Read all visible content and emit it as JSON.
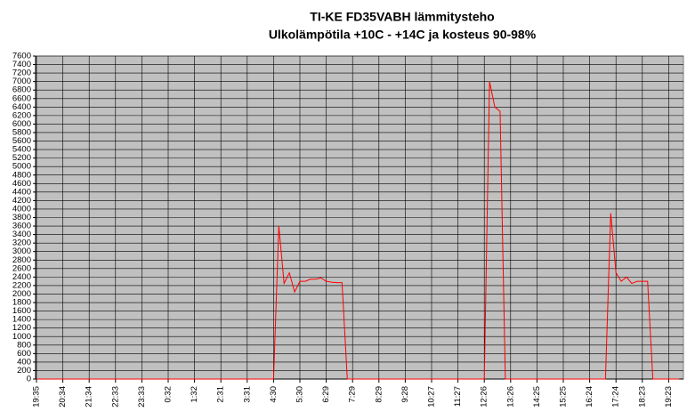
{
  "chart_data": {
    "type": "line",
    "title": "TI-KE FD35VABH lämmitysteho",
    "subtitle": "Ulkolämpötila  +10C - +14C ja kosteus 90-98%",
    "categories": [
      "19:35",
      null,
      null,
      null,
      null,
      "20:34",
      null,
      null,
      null,
      null,
      "21:34",
      null,
      null,
      null,
      null,
      "22:33",
      null,
      null,
      null,
      null,
      "23:33",
      null,
      null,
      null,
      null,
      "0:32",
      null,
      null,
      null,
      null,
      "1:32",
      null,
      null,
      null,
      null,
      "2:31",
      null,
      null,
      null,
      null,
      "3:31",
      null,
      null,
      null,
      null,
      "4:30",
      null,
      null,
      null,
      null,
      "5:30",
      null,
      null,
      null,
      null,
      "6:29",
      null,
      null,
      null,
      null,
      "7:29",
      null,
      null,
      null,
      null,
      "8:29",
      null,
      null,
      null,
      null,
      "9:28",
      null,
      null,
      null,
      null,
      "10:27",
      null,
      null,
      null,
      null,
      "11:27",
      null,
      null,
      null,
      null,
      "12:26",
      null,
      null,
      null,
      null,
      "13:26",
      null,
      null,
      null,
      null,
      "14:25",
      null,
      null,
      null,
      null,
      "15:25",
      null,
      null,
      null,
      null,
      "16:24",
      null,
      null,
      null,
      null,
      "17:24",
      null,
      null,
      null,
      null,
      "18:23",
      null,
      null,
      null,
      null,
      "19:23",
      null,
      null
    ],
    "series": [
      {
        "color": "#ff0000",
        "values": [
          0,
          0,
          0,
          0,
          0,
          0,
          0,
          0,
          0,
          0,
          0,
          0,
          0,
          0,
          0,
          0,
          0,
          0,
          0,
          0,
          0,
          0,
          0,
          0,
          0,
          0,
          0,
          0,
          0,
          0,
          0,
          0,
          0,
          0,
          0,
          0,
          0,
          0,
          0,
          0,
          0,
          0,
          0,
          0,
          0,
          0,
          3600,
          2250,
          2500,
          2050,
          2300,
          2300,
          2350,
          2350,
          2380,
          2300,
          2280,
          2270,
          2270,
          0,
          0,
          0,
          0,
          0,
          0,
          0,
          0,
          0,
          0,
          0,
          0,
          0,
          0,
          0,
          0,
          0,
          0,
          0,
          0,
          0,
          0,
          0,
          0,
          0,
          0,
          0,
          7000,
          6400,
          6300,
          0,
          0,
          0,
          0,
          0,
          0,
          0,
          0,
          0,
          0,
          0,
          0,
          0,
          0,
          0,
          0,
          0,
          0,
          0,
          0,
          3900,
          2500,
          2300,
          2400,
          2250,
          2300,
          2300,
          2300,
          0,
          0,
          0,
          0,
          0,
          0
        ]
      }
    ],
    "ylim": [
      0,
      7600
    ],
    "yticks": [
      0,
      200,
      400,
      600,
      800,
      1000,
      1200,
      1400,
      1600,
      1800,
      2000,
      2200,
      2400,
      2600,
      2800,
      3000,
      3200,
      3400,
      3600,
      3800,
      4000,
      4200,
      4400,
      4600,
      4800,
      5000,
      5200,
      5400,
      5600,
      5800,
      6000,
      6200,
      6400,
      6600,
      6800,
      7000,
      7200,
      7400,
      7600
    ],
    "grid": true,
    "background": "#c0c0c0"
  }
}
